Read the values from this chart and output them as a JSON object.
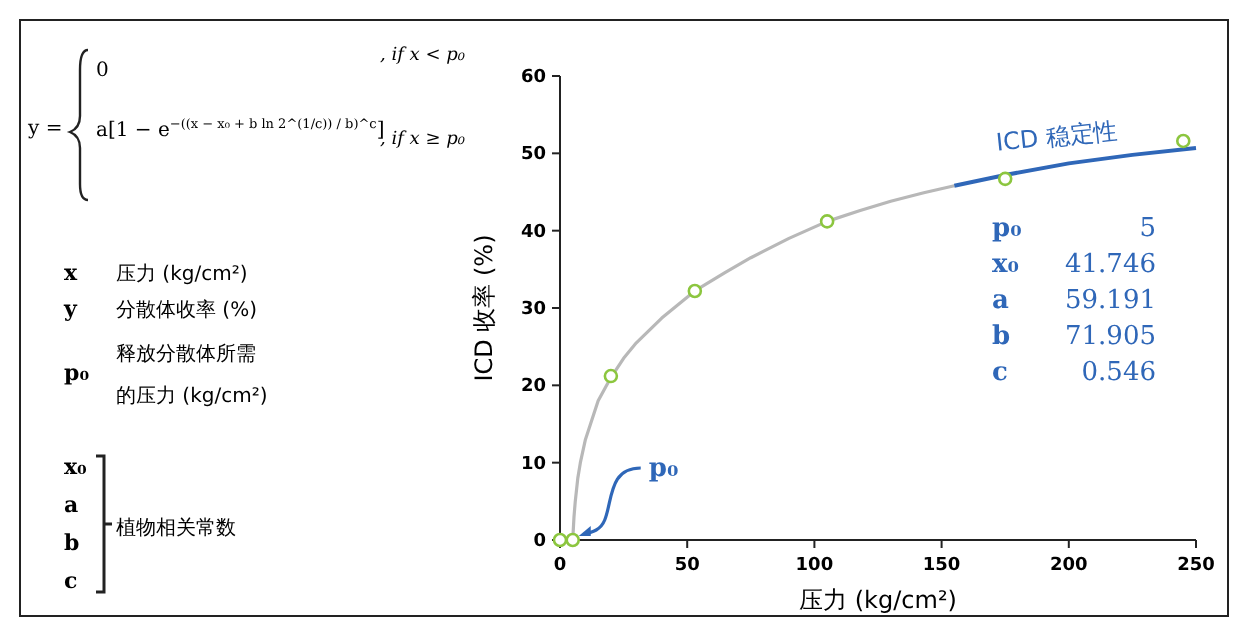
{
  "chart_data": {
    "type": "scatter",
    "xlabel": "压力 (kg/cm²)",
    "ylabel": "ICD 收率 (%)",
    "xlim": [
      0,
      250
    ],
    "ylim": [
      0,
      60
    ],
    "xticks": [
      0,
      50,
      100,
      150,
      200,
      250
    ],
    "yticks": [
      0,
      10,
      20,
      30,
      40,
      50,
      60
    ],
    "grid": false,
    "legend": false,
    "series": [
      {
        "type": "line",
        "color": "#b8b8b8",
        "x": [
          5,
          5.5,
          6,
          7,
          8,
          10,
          12,
          15,
          20,
          25,
          30,
          40,
          53,
          65,
          75,
          90,
          105,
          118,
          130,
          143,
          155
        ],
        "values": [
          0,
          3,
          5,
          8,
          10,
          13,
          15,
          18,
          21,
          23.5,
          25.5,
          28.7,
          32.2,
          34.6,
          36.5,
          39,
          41.2,
          42.6,
          43.8,
          44.9,
          45.8
        ]
      },
      {
        "type": "line",
        "name": "ICD 稳定性",
        "color": "#2f67b8",
        "x": [
          155,
          175,
          200,
          225,
          250
        ],
        "values": [
          45.8,
          47.2,
          48.7,
          49.8,
          50.7
        ]
      },
      {
        "color": "#8cc63f",
        "marker": "circle",
        "x": [
          0,
          5,
          20,
          53,
          105,
          175,
          245
        ],
        "values": [
          0,
          0,
          21.2,
          32.2,
          41.2,
          46.7,
          51.6
        ]
      }
    ],
    "annotations": [
      "y =",
      "0",
      ", if  x < p₀",
      "a[1 − e$^{−((x − x₀ + b ln 2^(1/c)) / b)^c}$]",
      ", if  x ≥ p₀",
      "x",
      "压力 (kg/cm²)",
      "y",
      "分散体收率 (%)",
      "p₀",
      "释放分散体所需",
      "的压力 (kg/cm²)",
      "x₀",
      "a",
      "b",
      "c",
      "植物相关常数",
      {
        "text": "p₀",
        "x": 5,
        "y": 0
      },
      "p₀",
      "5",
      "x₀",
      "41.746",
      "a",
      "59.191",
      "b",
      "71.905",
      "c",
      "0.546"
    ]
  }
}
